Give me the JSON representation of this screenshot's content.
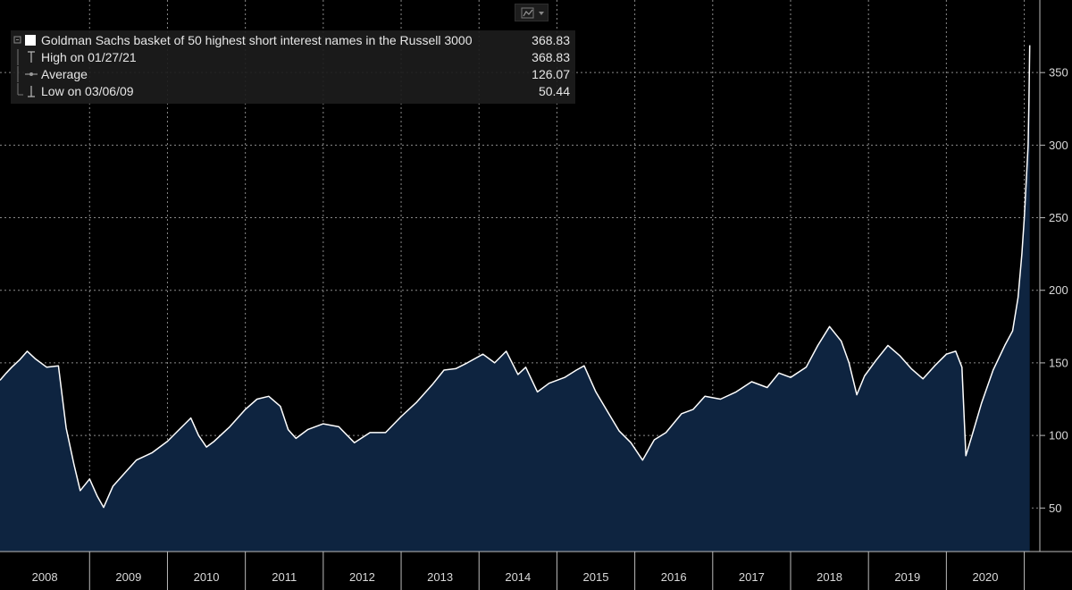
{
  "toolbar": {
    "chart_type_icon": "line-chart-icon",
    "dropdown_icon": "caret-down-icon"
  },
  "legend": {
    "items": [
      {
        "name": "Goldman Sachs basket of 50 highest short interest names in the Russell 3000",
        "value": "368.83",
        "icon": "white-square-icon"
      },
      {
        "name": "High on 01/27/21",
        "value": "368.83",
        "icon": "high-marker-icon"
      },
      {
        "name": "Average",
        "value": "126.07",
        "icon": "average-line-icon"
      },
      {
        "name": "Low on 03/06/09",
        "value": "50.44",
        "icon": "low-marker-icon"
      }
    ]
  },
  "colors": {
    "background": "#000000",
    "area_fill": "#0e2440",
    "line": "#ffffff",
    "grid": "#8a8a8a",
    "text": "#d9d9d9"
  },
  "chart_data": {
    "type": "area",
    "series": [
      {
        "name": "Goldman Sachs basket of 50 highest short interest names in the Russell 3000",
        "points": [
          [
            2007.85,
            138
          ],
          [
            2007.93,
            143
          ],
          [
            2008.0,
            147
          ],
          [
            2008.1,
            152
          ],
          [
            2008.2,
            158
          ],
          [
            2008.3,
            153
          ],
          [
            2008.45,
            147
          ],
          [
            2008.6,
            148
          ],
          [
            2008.7,
            105
          ],
          [
            2008.8,
            80
          ],
          [
            2008.88,
            62
          ],
          [
            2009.0,
            70
          ],
          [
            2009.1,
            58
          ],
          [
            2009.18,
            50.44
          ],
          [
            2009.3,
            65
          ],
          [
            2009.45,
            74
          ],
          [
            2009.6,
            83
          ],
          [
            2009.8,
            88
          ],
          [
            2010.0,
            96
          ],
          [
            2010.15,
            104
          ],
          [
            2010.3,
            112
          ],
          [
            2010.4,
            100
          ],
          [
            2010.5,
            92
          ],
          [
            2010.6,
            96
          ],
          [
            2010.8,
            106
          ],
          [
            2011.0,
            118
          ],
          [
            2011.15,
            125
          ],
          [
            2011.3,
            127
          ],
          [
            2011.45,
            120
          ],
          [
            2011.55,
            104
          ],
          [
            2011.65,
            98
          ],
          [
            2011.8,
            104
          ],
          [
            2012.0,
            108
          ],
          [
            2012.2,
            106
          ],
          [
            2012.4,
            95
          ],
          [
            2012.6,
            102
          ],
          [
            2012.8,
            102
          ],
          [
            2013.0,
            113
          ],
          [
            2013.2,
            123
          ],
          [
            2013.4,
            135
          ],
          [
            2013.55,
            145
          ],
          [
            2013.7,
            146
          ],
          [
            2013.85,
            150
          ],
          [
            2014.05,
            156
          ],
          [
            2014.2,
            150
          ],
          [
            2014.35,
            158
          ],
          [
            2014.5,
            142
          ],
          [
            2014.6,
            147
          ],
          [
            2014.75,
            130
          ],
          [
            2014.9,
            136
          ],
          [
            2015.1,
            140
          ],
          [
            2015.25,
            145
          ],
          [
            2015.35,
            148
          ],
          [
            2015.5,
            130
          ],
          [
            2015.7,
            112
          ],
          [
            2015.8,
            103
          ],
          [
            2015.95,
            95
          ],
          [
            2016.1,
            83
          ],
          [
            2016.25,
            97
          ],
          [
            2016.4,
            102
          ],
          [
            2016.6,
            115
          ],
          [
            2016.75,
            118
          ],
          [
            2016.9,
            127
          ],
          [
            2017.1,
            125
          ],
          [
            2017.3,
            130
          ],
          [
            2017.5,
            137
          ],
          [
            2017.7,
            133
          ],
          [
            2017.85,
            143
          ],
          [
            2018.0,
            140
          ],
          [
            2018.2,
            147
          ],
          [
            2018.35,
            162
          ],
          [
            2018.5,
            175
          ],
          [
            2018.65,
            165
          ],
          [
            2018.75,
            150
          ],
          [
            2018.85,
            128
          ],
          [
            2018.95,
            141
          ],
          [
            2019.1,
            152
          ],
          [
            2019.25,
            162
          ],
          [
            2019.4,
            155
          ],
          [
            2019.55,
            146
          ],
          [
            2019.7,
            139
          ],
          [
            2019.85,
            148
          ],
          [
            2020.0,
            156
          ],
          [
            2020.12,
            158
          ],
          [
            2020.2,
            147
          ],
          [
            2020.25,
            86
          ],
          [
            2020.33,
            100
          ],
          [
            2020.45,
            122
          ],
          [
            2020.6,
            145
          ],
          [
            2020.75,
            162
          ],
          [
            2020.85,
            172
          ],
          [
            2020.92,
            195
          ],
          [
            2020.97,
            225
          ],
          [
            2021.0,
            250
          ],
          [
            2021.03,
            280
          ],
          [
            2021.05,
            300
          ],
          [
            2021.06,
            330
          ],
          [
            2021.07,
            368.83
          ]
        ]
      }
    ],
    "x_ticks": [
      "2008",
      "2009",
      "2010",
      "2011",
      "2012",
      "2013",
      "2014",
      "2015",
      "2016",
      "2017",
      "2018",
      "2019",
      "2020"
    ],
    "y_ticks": [
      "50",
      "100",
      "150",
      "200",
      "250",
      "300",
      "350"
    ],
    "xlim": [
      2007.85,
      2021.2
    ],
    "ylim": [
      20,
      400
    ],
    "grid": true,
    "legend_position": "top-left",
    "high": 368.83,
    "average": 126.07,
    "low": 50.44
  }
}
